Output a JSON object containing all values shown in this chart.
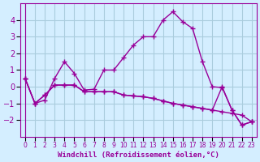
{
  "xlabel": "Windchill (Refroidissement éolien,°C)",
  "x": [
    0,
    1,
    2,
    3,
    4,
    5,
    6,
    7,
    8,
    9,
    10,
    11,
    12,
    13,
    14,
    15,
    16,
    17,
    18,
    19,
    20,
    21,
    22,
    23
  ],
  "line1": [
    0.5,
    -1.0,
    -0.8,
    0.5,
    1.5,
    0.8,
    -0.2,
    -0.15,
    1.0,
    1.0,
    1.75,
    2.5,
    3.0,
    3.0,
    4.0,
    4.5,
    3.9,
    3.5,
    1.5,
    0.0,
    -0.05,
    -1.4,
    -2.3,
    -2.1
  ],
  "line2": [
    0.5,
    -1.0,
    -0.5,
    0.1,
    0.1,
    0.1,
    -0.3,
    -0.3,
    -0.3,
    -0.3,
    -0.5,
    -0.55,
    -0.6,
    -0.7,
    -0.85,
    -1.0,
    -1.1,
    -1.2,
    -1.3,
    -1.4,
    -1.5,
    -1.6,
    -1.7,
    -2.1
  ],
  "line3": [
    0.5,
    -1.0,
    -0.5,
    0.1,
    0.1,
    0.1,
    -0.3,
    -0.3,
    -0.3,
    -0.3,
    -0.5,
    -0.55,
    -0.6,
    -0.7,
    -0.85,
    -1.0,
    -1.1,
    -1.2,
    -1.3,
    -1.4,
    0.0,
    -1.4,
    -2.3,
    -2.1
  ],
  "line_color": "#990099",
  "bg_color": "#d4eeff",
  "grid_color": "#aaccdd",
  "ylim": [
    -3,
    5
  ],
  "yticks": [
    -2,
    -1,
    0,
    1,
    2,
    3,
    4
  ],
  "marker": "+"
}
